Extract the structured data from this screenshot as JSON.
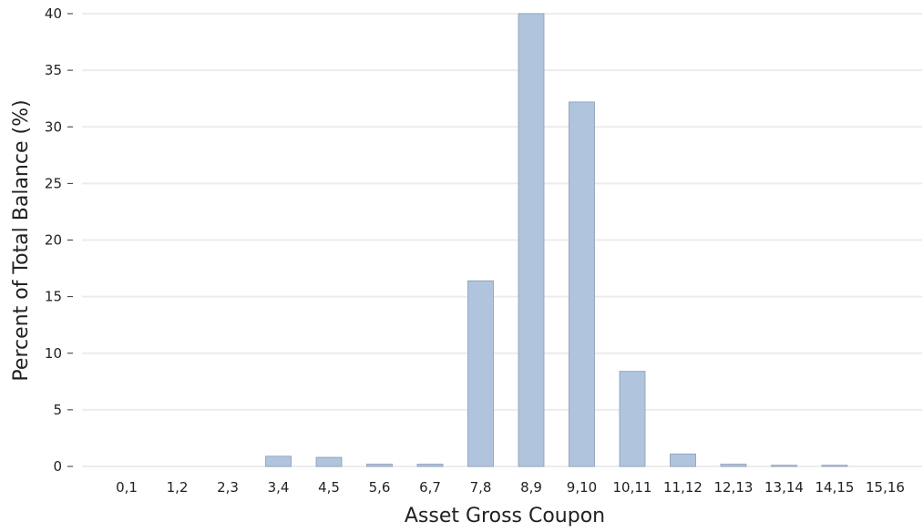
{
  "chart_data": {
    "type": "bar",
    "title": "",
    "xlabel": "Asset Gross Coupon",
    "ylabel": "Percent of Total Balance (%)",
    "categories": [
      "0,1",
      "1,2",
      "2,3",
      "3,4",
      "4,5",
      "5,6",
      "6,7",
      "7,8",
      "8,9",
      "9,10",
      "10,11",
      "11,12",
      "12,13",
      "13,14",
      "14,15",
      "15,16"
    ],
    "values": [
      0,
      0,
      0,
      0.9,
      0.8,
      0.2,
      0.2,
      16.4,
      40.0,
      32.2,
      8.4,
      1.1,
      0.2,
      0.1,
      0.1,
      0
    ],
    "ylim": [
      0,
      40
    ],
    "yticks": [
      "0",
      "5",
      "10",
      "15",
      "20",
      "25",
      "30",
      "35",
      "40"
    ],
    "grid": "horizontal",
    "legend": "none",
    "bar_color": "#b0c4de",
    "bar_edge_color": "#8a9bb5",
    "grid_color": "#ececec"
  }
}
